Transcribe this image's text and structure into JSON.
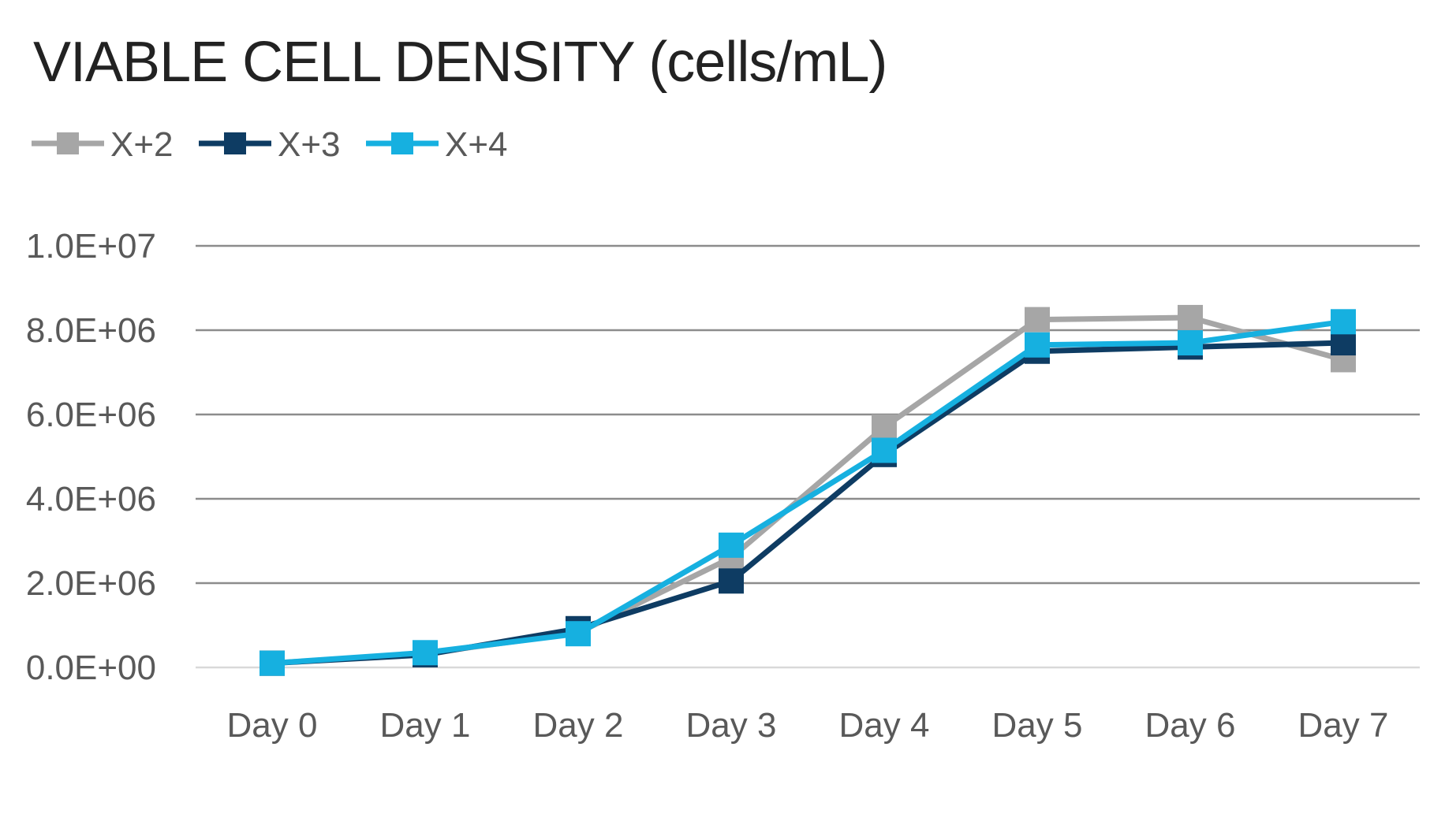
{
  "chart_data": {
    "type": "line",
    "title": "VIABLE CELL DENSITY (cells/mL)",
    "xlabel": "",
    "ylabel": "",
    "categories": [
      "Day 0",
      "Day 1",
      "Day 2",
      "Day 3",
      "Day 4",
      "Day 5",
      "Day 6",
      "Day 7"
    ],
    "ylim": [
      0,
      10000000
    ],
    "y_ticks": [
      0,
      2000000,
      4000000,
      6000000,
      8000000,
      10000000
    ],
    "y_tick_labels": [
      "0.0E+00",
      "2.0E+06",
      "4.0E+06",
      "6.0E+06",
      "8.0E+06",
      "1.0E+07"
    ],
    "grid": true,
    "legend_position": "top-left",
    "series": [
      {
        "name": "X+2",
        "color": "#a6a6a6",
        "values": [
          100000,
          330000,
          820000,
          2600000,
          5700000,
          8250000,
          8300000,
          7300000
        ]
      },
      {
        "name": "X+3",
        "color": "#0e3c63",
        "values": [
          100000,
          300000,
          920000,
          2050000,
          5050000,
          7500000,
          7600000,
          7700000
        ]
      },
      {
        "name": "X+4",
        "color": "#16b0e0",
        "values": [
          100000,
          350000,
          800000,
          2900000,
          5150000,
          7650000,
          7700000,
          8200000
        ]
      }
    ]
  }
}
